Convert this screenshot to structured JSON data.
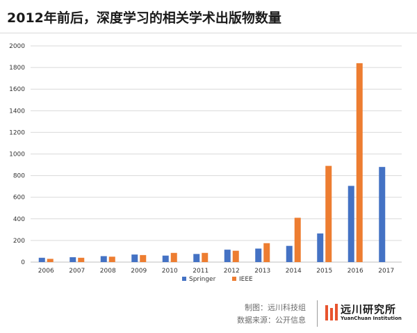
{
  "header": {
    "title": "2012年前后，深度学习的相关学术出版物数量"
  },
  "chart_data": {
    "type": "bar",
    "categories": [
      "2006",
      "2007",
      "2008",
      "2009",
      "2010",
      "2011",
      "2012",
      "2013",
      "2014",
      "2015",
      "2016",
      "2017"
    ],
    "series": [
      {
        "name": "Springer",
        "color": "#4472c4",
        "values": [
          40,
          45,
          55,
          70,
          60,
          75,
          115,
          125,
          150,
          265,
          705,
          880
        ]
      },
      {
        "name": "IEEE",
        "color": "#ed7d31",
        "values": [
          30,
          40,
          50,
          65,
          85,
          85,
          105,
          175,
          410,
          890,
          1840,
          null
        ]
      }
    ],
    "ylim": [
      0,
      2000
    ],
    "yticks": [
      0,
      200,
      400,
      600,
      800,
      1000,
      1200,
      1400,
      1600,
      1800,
      2000
    ],
    "grid": true,
    "legend": "bottom-center",
    "title": "",
    "xlabel": "",
    "ylabel": ""
  },
  "footer": {
    "credit_line1": "制图：远川科技组",
    "credit_line2": "数据来源：公开信息",
    "brand_cn": "远川研究所",
    "brand_en": "YuanChuan Institution",
    "logo_icon": "yuanchuan-logo-icon"
  }
}
